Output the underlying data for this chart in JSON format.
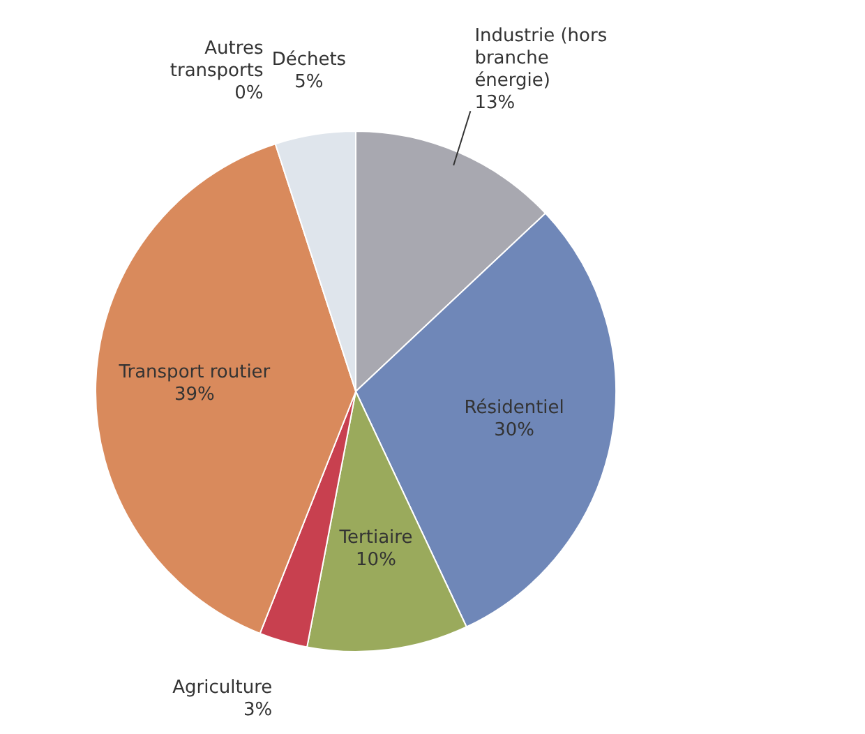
{
  "chart_data": {
    "type": "pie",
    "categories": [
      "Industrie (hors branche énergie)",
      "Résidentiel",
      "Tertiaire",
      "Agriculture",
      "Transport routier",
      "Autres transports",
      "Déchets"
    ],
    "values": [
      13,
      30,
      10,
      3,
      39,
      0,
      5
    ],
    "value_labels": [
      "13%",
      "30%",
      "10%",
      "3%",
      "39%",
      "0%",
      "5%"
    ],
    "colors": [
      "#a8a8b0",
      "#6f87b8",
      "#9aaa5c",
      "#c8404f",
      "#d98a5c",
      "#222222",
      "#dfe5ec"
    ],
    "legend": false
  }
}
